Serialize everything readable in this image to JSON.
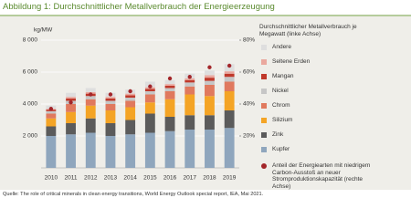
{
  "chart_data": {
    "type": "bar",
    "stacked": true,
    "title": "Abbildung 1: Durchschnittlicher Metallverbrauch der Energieerzeugung",
    "y_label": "kg/MW",
    "legend_title": "Durchschnittlicher Metallverbrauch je Megawatt (linke Achse)",
    "source": "Quelle: The role of critical minerals in clean energy transitions, World Energy Outlook special report, IEA, Mai 2021.",
    "categories": [
      "2010",
      "2011",
      "2012",
      "2013",
      "2014",
      "2015",
      "2016",
      "2017",
      "2018",
      "2019"
    ],
    "ylim": [
      0,
      8000
    ],
    "yticks": [
      {
        "value": 2000,
        "label": "2 000"
      },
      {
        "value": 4000,
        "label": "4 000"
      },
      {
        "value": 6000,
        "label": "6 000"
      },
      {
        "value": 8000,
        "label": "8 000"
      }
    ],
    "y2lim": [
      0,
      80
    ],
    "y2ticks": [
      {
        "value": 20,
        "label": "20%"
      },
      {
        "value": 40,
        "label": "40%"
      },
      {
        "value": 60,
        "label": "60%"
      },
      {
        "value": 80,
        "label": "80%"
      }
    ],
    "grid": true,
    "series": [
      {
        "name": "Kupfer",
        "color": "#8fa6bd",
        "values": [
          2000,
          2100,
          2200,
          2000,
          2100,
          2200,
          2300,
          2400,
          2400,
          2500
        ]
      },
      {
        "name": "Zink",
        "color": "#5b5b5b",
        "values": [
          600,
          700,
          900,
          800,
          900,
          1200,
          900,
          900,
          900,
          1100
        ]
      },
      {
        "name": "Silizium",
        "color": "#f4a425",
        "values": [
          500,
          700,
          800,
          800,
          800,
          700,
          1100,
          1300,
          1200,
          1200
        ]
      },
      {
        "name": "Chrom",
        "color": "#e0795e",
        "values": [
          300,
          500,
          400,
          400,
          400,
          500,
          500,
          500,
          700,
          600
        ]
      },
      {
        "name": "Nickel",
        "color": "#c6c6c6",
        "values": [
          150,
          200,
          200,
          200,
          200,
          200,
          200,
          250,
          250,
          300
        ]
      },
      {
        "name": "Mangan",
        "color": "#c0392b",
        "values": [
          100,
          150,
          150,
          150,
          150,
          150,
          150,
          150,
          200,
          200
        ]
      },
      {
        "name": "Seltene Erden",
        "color": "#eaa89e",
        "values": [
          50,
          100,
          100,
          100,
          100,
          100,
          100,
          100,
          150,
          150
        ]
      },
      {
        "name": "Andere",
        "color": "#dedede",
        "values": [
          200,
          250,
          250,
          250,
          250,
          350,
          250,
          300,
          300,
          450
        ]
      },
      {
        "name": "Anteil der Energiearten mit niedrigem Carbon-Ausstoß an neuer Stromproduktionskapazität (rechte Achse)",
        "color": "#a3262a",
        "axis": "y2",
        "values": [
          37,
          41,
          46,
          46,
          48,
          51,
          56,
          57,
          63,
          64
        ]
      }
    ]
  }
}
